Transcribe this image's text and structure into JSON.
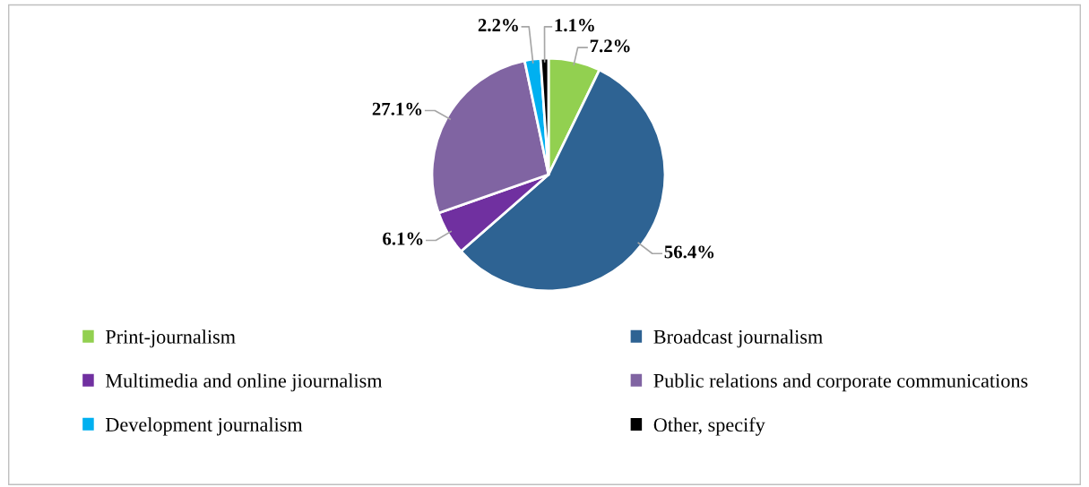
{
  "chart_data": {
    "type": "pie",
    "categories": [
      "Print-journalism",
      "Broadcast journalism",
      "Multimedia and online jiournalism",
      "Public relations and corporate communications",
      "Development journalism",
      "Other, specify"
    ],
    "values": [
      7.2,
      56.4,
      6.1,
      27.1,
      2.2,
      1.1
    ],
    "value_labels": [
      "7.2%",
      "56.4%",
      "6.1%",
      "27.1%",
      "2.2%",
      "1.1%"
    ],
    "colors": [
      "#92d050",
      "#2e6393",
      "#7030a0",
      "#8064a2",
      "#00b0f0",
      "#000000"
    ],
    "legend": "bottom"
  }
}
